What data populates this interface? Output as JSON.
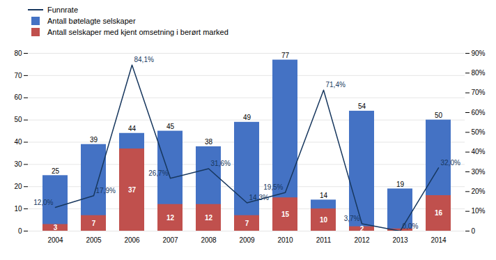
{
  "chart_data": {
    "type": "bar",
    "categories": [
      "2004",
      "2005",
      "2006",
      "2007",
      "2008",
      "2009",
      "2010",
      "2011",
      "2012",
      "2013",
      "2014"
    ],
    "series": [
      {
        "name": "Funnrate",
        "type": "line",
        "axis": "y2",
        "color": "#17375E",
        "values": [
          12.0,
          17.9,
          84.1,
          26.7,
          31.6,
          14.3,
          19.5,
          71.4,
          3.7,
          0.0,
          32.0
        ],
        "value_labels": [
          "12,0%",
          "17,9%",
          "84,1%",
          "26,7%",
          "31,6%",
          "14,3%",
          "19,5%",
          "71,4%",
          "3,7%",
          "0,0%",
          "32,0%"
        ],
        "data_labels": true
      },
      {
        "name": "Antall bøtelagte selskaper",
        "type": "bar",
        "color": "#4472C4",
        "values": [
          25,
          39,
          44,
          45,
          38,
          49,
          77,
          14,
          54,
          19,
          50
        ],
        "data_labels": true
      },
      {
        "name": "Antall selskaper med kjent omsetning i berørt marked",
        "type": "bar",
        "color": "#C0504D",
        "values": [
          3,
          7,
          37,
          12,
          12,
          7,
          15,
          10,
          2,
          1,
          16
        ],
        "value_labels": [
          "3",
          "7",
          "37",
          "12",
          "12",
          "7",
          "15",
          "10",
          "2",
          null,
          "16"
        ],
        "data_labels": true
      }
    ],
    "stacked": false,
    "ylim": [
      0,
      80
    ],
    "yticks": [
      0,
      10,
      20,
      30,
      40,
      50,
      60,
      70,
      80
    ],
    "y2lim": [
      0,
      90
    ],
    "y2ticks": [
      0,
      {
        "value": 10,
        "label": "10%"
      },
      {
        "value": 20,
        "label": "20%"
      },
      {
        "value": 30,
        "label": "30%"
      },
      {
        "value": 40,
        "label": "40%"
      },
      {
        "value": 50,
        "label": "50%"
      },
      {
        "value": 60,
        "label": "60%"
      },
      {
        "value": 70,
        "label": "70%"
      },
      {
        "value": 80,
        "label": "80%"
      },
      {
        "value": 90,
        "label": "90%"
      }
    ],
    "grid": true,
    "legend": "upper left"
  }
}
